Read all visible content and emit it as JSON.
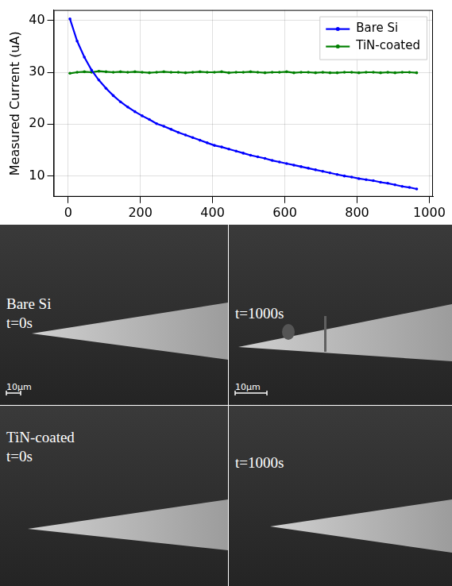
{
  "chart_data": {
    "type": "line",
    "ylabel": "Measured Current (uA)",
    "x": [
      5,
      25,
      45,
      65,
      85,
      105,
      125,
      145,
      165,
      185,
      205,
      225,
      245,
      265,
      285,
      305,
      325,
      345,
      365,
      385,
      405,
      425,
      445,
      465,
      485,
      505,
      525,
      545,
      565,
      585,
      605,
      625,
      645,
      665,
      685,
      705,
      725,
      745,
      765,
      785,
      805,
      825,
      845,
      865,
      885,
      905,
      925,
      945,
      965
    ],
    "series": [
      {
        "name": "Bare Si",
        "color": "#0000ff",
        "marker": "circle",
        "line_style": "solid",
        "values": [
          40.3,
          36.0,
          32.9,
          30.4,
          28.5,
          26.9,
          25.5,
          24.3,
          23.3,
          22.4,
          21.6,
          20.9,
          20.1,
          19.6,
          19.0,
          18.4,
          17.9,
          17.4,
          16.9,
          16.4,
          15.9,
          15.6,
          15.2,
          14.8,
          14.4,
          14.0,
          13.7,
          13.4,
          13.0,
          12.7,
          12.4,
          12.1,
          11.8,
          11.5,
          11.2,
          10.9,
          10.6,
          10.3,
          10.0,
          9.8,
          9.5,
          9.3,
          9.1,
          8.8,
          8.6,
          8.3,
          8.0,
          7.8,
          7.5
        ]
      },
      {
        "name": "TiN-coated",
        "color": "#008000",
        "marker": "circle",
        "line_style": "solid",
        "values": [
          29.8,
          30.0,
          30.1,
          30.0,
          30.2,
          30.1,
          30.0,
          30.1,
          30.0,
          30.1,
          30.0,
          29.9,
          30.0,
          30.1,
          30.0,
          30.0,
          29.9,
          30.0,
          30.1,
          30.0,
          30.0,
          30.1,
          29.9,
          30.0,
          30.0,
          30.1,
          30.0,
          29.9,
          30.0,
          30.0,
          30.1,
          29.9,
          30.0,
          30.0,
          29.9,
          30.0,
          29.9,
          29.9,
          30.0,
          30.0,
          29.9,
          30.0,
          30.0,
          29.9,
          30.0,
          29.9,
          30.0,
          30.0,
          29.9
        ]
      }
    ],
    "xlim": [
      -40,
      1010
    ],
    "xticks": [
      0,
      200,
      400,
      600,
      800,
      1000
    ],
    "ylim": [
      6,
      42
    ],
    "yticks": [
      10,
      20,
      30,
      40
    ],
    "grid": true,
    "legend": "upper right"
  },
  "images": [
    {
      "lines": [
        "Bare Si",
        "t=0s"
      ],
      "scale_bar": "10µm"
    },
    {
      "lines": [
        "t=1000s"
      ],
      "scale_bar": "10µm"
    },
    {
      "lines": [
        "TiN-coated",
        "t=0s"
      ]
    },
    {
      "lines": [
        "t=1000s"
      ]
    }
  ]
}
